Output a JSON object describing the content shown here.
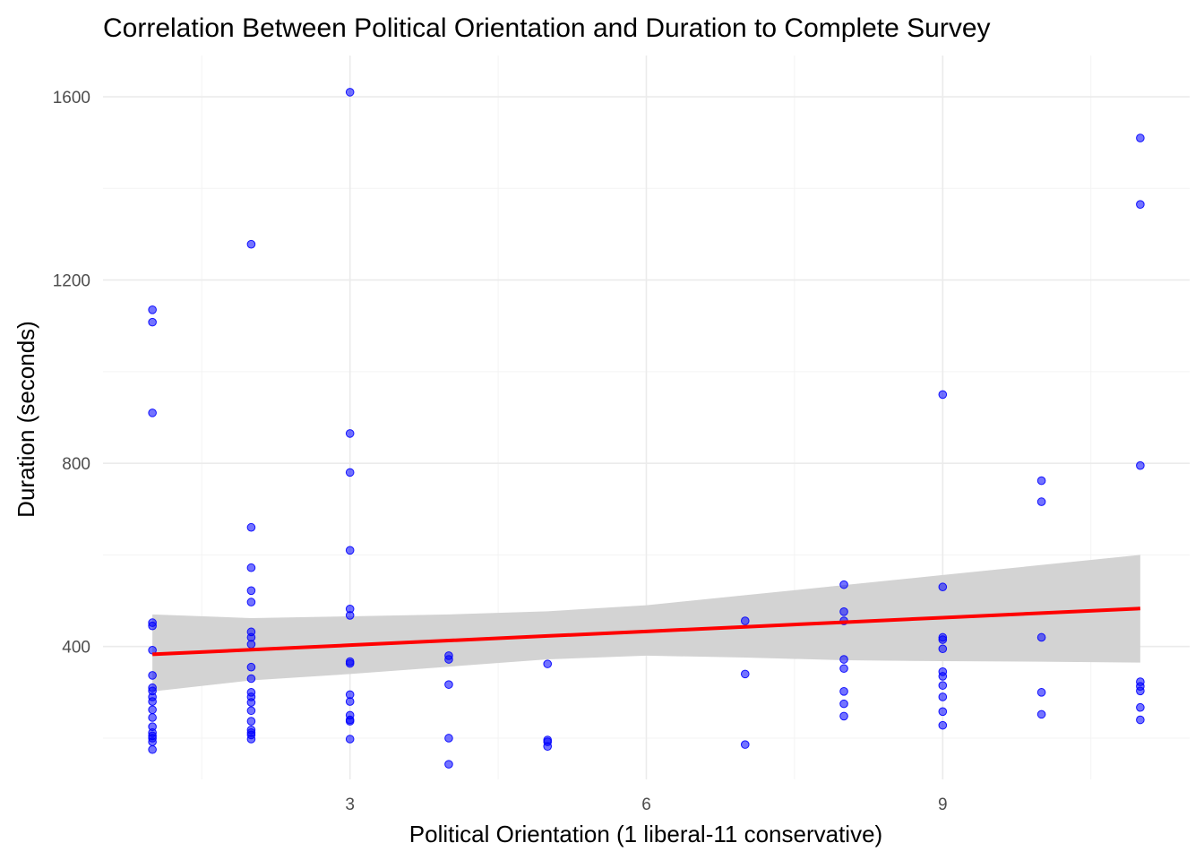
{
  "chart_data": {
    "type": "scatter",
    "title": "Correlation Between Political Orientation and Duration to Complete Survey",
    "xlabel": "Political Orientation (1 liberal-11 conservative)",
    "ylabel": "Duration (seconds)",
    "xlim": [
      0.5,
      11.5
    ],
    "ylim": [
      110,
      1690
    ],
    "x_ticks": [
      3,
      6,
      9
    ],
    "y_ticks": [
      400,
      800,
      1200,
      1600
    ],
    "x_minor": [
      1.5,
      4.5,
      7.5,
      10.5
    ],
    "y_minor": [
      200,
      600,
      1000,
      1400
    ],
    "grid": true,
    "legend": "none",
    "point_color": "#0000FF",
    "fit_color": "#FF0000",
    "band_color": "#D3D3D3",
    "points": [
      {
        "x": 1,
        "y": 1135
      },
      {
        "x": 1,
        "y": 1108
      },
      {
        "x": 1,
        "y": 910
      },
      {
        "x": 1,
        "y": 452
      },
      {
        "x": 1,
        "y": 445
      },
      {
        "x": 1,
        "y": 392
      },
      {
        "x": 1,
        "y": 337
      },
      {
        "x": 1,
        "y": 310
      },
      {
        "x": 1,
        "y": 303
      },
      {
        "x": 1,
        "y": 290
      },
      {
        "x": 1,
        "y": 280
      },
      {
        "x": 1,
        "y": 262
      },
      {
        "x": 1,
        "y": 245
      },
      {
        "x": 1,
        "y": 225
      },
      {
        "x": 1,
        "y": 212
      },
      {
        "x": 1,
        "y": 205
      },
      {
        "x": 1,
        "y": 200
      },
      {
        "x": 1,
        "y": 192
      },
      {
        "x": 1,
        "y": 175
      },
      {
        "x": 2,
        "y": 1278
      },
      {
        "x": 2,
        "y": 660
      },
      {
        "x": 2,
        "y": 572
      },
      {
        "x": 2,
        "y": 522
      },
      {
        "x": 2,
        "y": 497
      },
      {
        "x": 2,
        "y": 432
      },
      {
        "x": 2,
        "y": 420
      },
      {
        "x": 2,
        "y": 405
      },
      {
        "x": 2,
        "y": 355
      },
      {
        "x": 2,
        "y": 330
      },
      {
        "x": 2,
        "y": 300
      },
      {
        "x": 2,
        "y": 290
      },
      {
        "x": 2,
        "y": 278
      },
      {
        "x": 2,
        "y": 260
      },
      {
        "x": 2,
        "y": 237
      },
      {
        "x": 2,
        "y": 218
      },
      {
        "x": 2,
        "y": 212
      },
      {
        "x": 2,
        "y": 207
      },
      {
        "x": 2,
        "y": 198
      },
      {
        "x": 3,
        "y": 1610
      },
      {
        "x": 3,
        "y": 865
      },
      {
        "x": 3,
        "y": 780
      },
      {
        "x": 3,
        "y": 610
      },
      {
        "x": 3,
        "y": 482
      },
      {
        "x": 3,
        "y": 468
      },
      {
        "x": 3,
        "y": 367
      },
      {
        "x": 3,
        "y": 363
      },
      {
        "x": 3,
        "y": 295
      },
      {
        "x": 3,
        "y": 280
      },
      {
        "x": 3,
        "y": 250
      },
      {
        "x": 3,
        "y": 240
      },
      {
        "x": 3,
        "y": 237
      },
      {
        "x": 3,
        "y": 198
      },
      {
        "x": 4,
        "y": 380
      },
      {
        "x": 4,
        "y": 372
      },
      {
        "x": 4,
        "y": 317
      },
      {
        "x": 4,
        "y": 200
      },
      {
        "x": 4,
        "y": 143
      },
      {
        "x": 5,
        "y": 362
      },
      {
        "x": 5,
        "y": 196
      },
      {
        "x": 5,
        "y": 192
      },
      {
        "x": 5,
        "y": 182
      },
      {
        "x": 7,
        "y": 456
      },
      {
        "x": 7,
        "y": 340
      },
      {
        "x": 7,
        "y": 186
      },
      {
        "x": 8,
        "y": 535
      },
      {
        "x": 8,
        "y": 476
      },
      {
        "x": 8,
        "y": 456
      },
      {
        "x": 8,
        "y": 372
      },
      {
        "x": 8,
        "y": 352
      },
      {
        "x": 8,
        "y": 302
      },
      {
        "x": 8,
        "y": 275
      },
      {
        "x": 8,
        "y": 248
      },
      {
        "x": 9,
        "y": 950
      },
      {
        "x": 9,
        "y": 530
      },
      {
        "x": 9,
        "y": 420
      },
      {
        "x": 9,
        "y": 415
      },
      {
        "x": 9,
        "y": 395
      },
      {
        "x": 9,
        "y": 345
      },
      {
        "x": 9,
        "y": 335
      },
      {
        "x": 9,
        "y": 315
      },
      {
        "x": 9,
        "y": 290
      },
      {
        "x": 9,
        "y": 258
      },
      {
        "x": 9,
        "y": 228
      },
      {
        "x": 10,
        "y": 762
      },
      {
        "x": 10,
        "y": 716
      },
      {
        "x": 10,
        "y": 420
      },
      {
        "x": 10,
        "y": 300
      },
      {
        "x": 10,
        "y": 252
      },
      {
        "x": 11,
        "y": 1510
      },
      {
        "x": 11,
        "y": 1365
      },
      {
        "x": 11,
        "y": 795
      },
      {
        "x": 11,
        "y": 323
      },
      {
        "x": 11,
        "y": 313
      },
      {
        "x": 11,
        "y": 303
      },
      {
        "x": 11,
        "y": 267
      },
      {
        "x": 11,
        "y": 240
      }
    ],
    "fit": {
      "x": [
        1,
        2,
        3,
        4,
        5,
        6,
        7,
        8,
        9,
        10,
        11
      ],
      "y": [
        383,
        393,
        403,
        413,
        423,
        433,
        443,
        453,
        463,
        473,
        483
      ],
      "lower": [
        302,
        326,
        340,
        356,
        372,
        380,
        376,
        370,
        368,
        367,
        365
      ],
      "upper": [
        470,
        462,
        466,
        470,
        477,
        490,
        512,
        534,
        556,
        578,
        600
      ]
    }
  }
}
